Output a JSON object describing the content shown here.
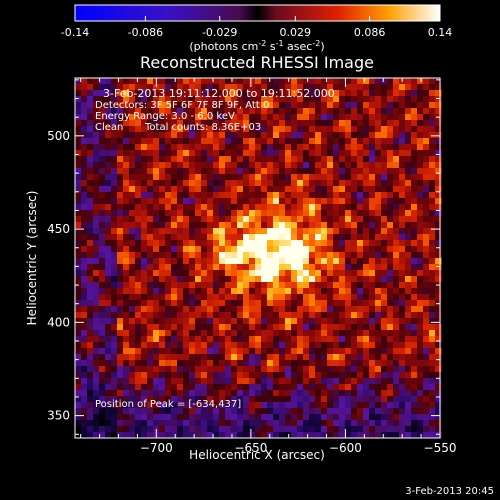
{
  "colors": {
    "background": "#000000",
    "text": "#ffffff",
    "axis": "#ffffff"
  },
  "colorbar": {
    "ticks": [
      "-0.14",
      "-0.086",
      "-0.029",
      "0.029",
      "0.086",
      "0.14"
    ],
    "tick_values": [
      -0.14,
      -0.086,
      -0.029,
      0.029,
      0.086,
      0.14
    ],
    "range": [
      -0.14,
      0.14
    ],
    "colormap": "black-blue-purple-red-yellow-white",
    "units_prefix": "(photons cm",
    "units_exp1": "-2",
    "units_mid": " s",
    "units_exp2": "-1",
    "units_mid2": " asec",
    "units_exp3": "-2",
    "units_suffix": ")"
  },
  "annotations": {
    "time_range": "3-Feb-2013 19:11:12.000 to 19:11:52.000",
    "detectors": "Detectors: 3F 5F 6F 7F 8F 9F, Att 0",
    "energy": "Energy Range: 3.0 - 6.0 keV",
    "clean": "Clean",
    "total_counts": "Total counts: 8.36E+03",
    "peak": "Position of Peak = [-634,437]"
  },
  "footer": {
    "date": "3-Feb-2013 20:45"
  },
  "chart_data": {
    "type": "heatmap",
    "title": "Reconstructed RHESSI Image",
    "xlabel": "Heliocentric X (arcsec)",
    "ylabel": "Heliocentric Y (arcsec)",
    "xlim": [
      -743,
      -550
    ],
    "ylim": [
      338,
      531
    ],
    "x_ticks": [
      -700,
      -650,
      -600,
      -550
    ],
    "y_ticks": [
      350,
      400,
      450,
      500
    ],
    "x_tick_labels": [
      "−700",
      "−650",
      "−600",
      "−550"
    ],
    "y_tick_labels": [
      "350",
      "400",
      "450",
      "500"
    ],
    "grid": false,
    "peak": {
      "x": -634,
      "y": 437,
      "value": 0.14
    },
    "value_range": [
      -0.14,
      0.14
    ]
  }
}
